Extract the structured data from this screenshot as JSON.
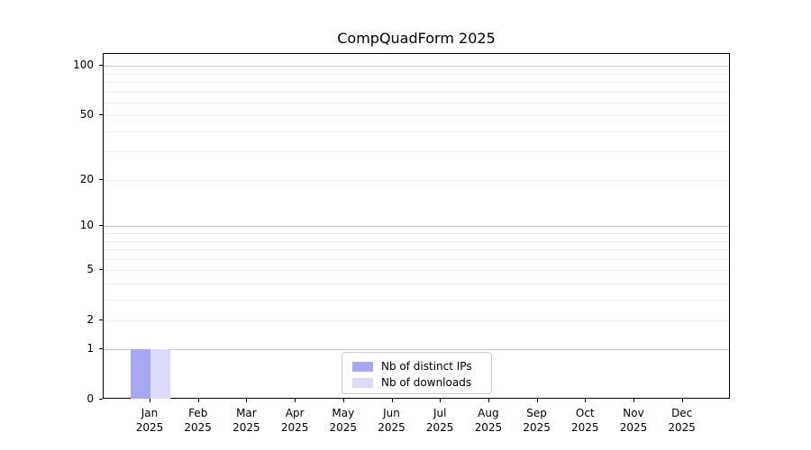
{
  "chart_data": {
    "type": "bar",
    "title": "CompQuadForm 2025",
    "categories": [
      "Jan 2025",
      "Feb 2025",
      "Mar 2025",
      "Apr 2025",
      "May 2025",
      "Jun 2025",
      "Jul 2025",
      "Aug 2025",
      "Sep 2025",
      "Oct 2025",
      "Nov 2025",
      "Dec 2025"
    ],
    "series": [
      {
        "name": "Nb of distinct IPs",
        "color": "#a8a8f2",
        "values": [
          1,
          0,
          0,
          0,
          0,
          0,
          0,
          0,
          0,
          0,
          0,
          0
        ]
      },
      {
        "name": "Nb of downloads",
        "color": "#dcdcf8",
        "values": [
          1,
          0,
          0,
          0,
          0,
          0,
          0,
          0,
          0,
          0,
          0,
          0
        ]
      }
    ],
    "xlabel": "",
    "ylabel": "",
    "yscale": "log1p",
    "ylim": [
      0,
      118
    ],
    "yticks_labeled": [
      0,
      1,
      2,
      5,
      10,
      20,
      50,
      100
    ],
    "ygrid_major": [
      1,
      10,
      100
    ],
    "ygrid_minor": [
      2,
      3,
      4,
      5,
      6,
      7,
      8,
      9,
      20,
      30,
      40,
      50,
      60,
      70,
      80,
      90
    ],
    "grid": true,
    "legend_position": "lower center",
    "colors": {
      "grid_major": "#c6c6c6",
      "grid_minor": "#eeeeee",
      "spine": "#000000",
      "background": "#ffffff"
    }
  }
}
